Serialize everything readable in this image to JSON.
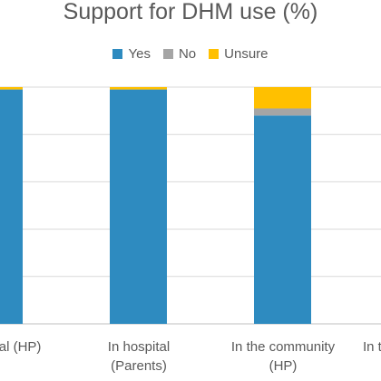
{
  "chart_data": {
    "type": "bar",
    "stacked": true,
    "title": "Support for DHM use (%)",
    "xlabel": "",
    "ylabel": "",
    "ylim": [
      0,
      100
    ],
    "grid": true,
    "legend_position": "top",
    "categories": [
      {
        "line1": "tal (HP)",
        "line2": ""
      },
      {
        "line1": "In hospital",
        "line2": "(Parents)"
      },
      {
        "line1": "In the community",
        "line2": "(HP)"
      },
      {
        "line1": "In t",
        "line2": ""
      }
    ],
    "series": [
      {
        "name": "Yes",
        "color": "#2E8BC0",
        "values": [
          99,
          99,
          88,
          null
        ]
      },
      {
        "name": "No",
        "color": "#A5A5A5",
        "values": [
          0,
          0,
          3,
          null
        ]
      },
      {
        "name": "Unsure",
        "color": "#FFC000",
        "values": [
          1,
          1,
          9,
          null
        ]
      }
    ]
  }
}
